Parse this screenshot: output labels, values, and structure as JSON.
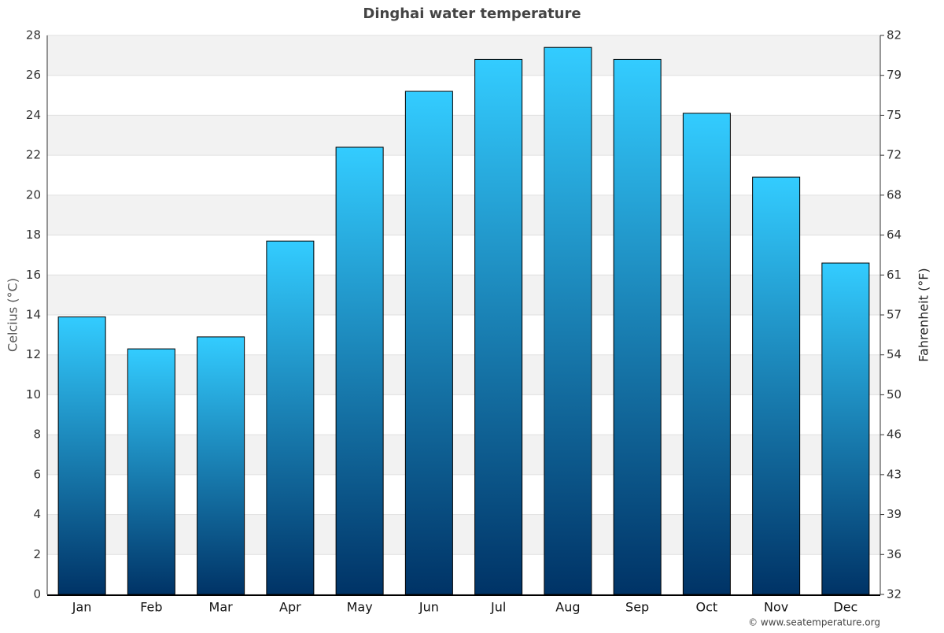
{
  "chart_data": {
    "type": "bar",
    "title": "Dinghai water temperature",
    "categories": [
      "Jan",
      "Feb",
      "Mar",
      "Apr",
      "May",
      "Jun",
      "Jul",
      "Aug",
      "Sep",
      "Oct",
      "Nov",
      "Dec"
    ],
    "values": [
      13.9,
      12.3,
      12.9,
      17.7,
      22.4,
      25.2,
      26.8,
      27.4,
      26.8,
      24.1,
      20.9,
      16.6
    ],
    "gradient": [
      "#33ccff",
      "#003366"
    ],
    "y_label": "Celcius (°C)",
    "y2_label": "Fahrenheit (°F)",
    "ylim": [
      0,
      28
    ],
    "yticks": [
      0,
      2,
      4,
      6,
      8,
      10,
      12,
      14,
      16,
      18,
      20,
      22,
      24,
      26,
      28
    ],
    "y2lim": [
      32,
      82.4
    ],
    "y2ticks": [
      32,
      {
        "value": 35.6,
        "label": "36"
      },
      {
        "value": 39.2,
        "label": "39"
      },
      {
        "value": 42.8,
        "label": "43"
      },
      {
        "value": 46.4,
        "label": "46"
      },
      50,
      {
        "value": 53.6,
        "label": "54"
      },
      {
        "value": 57.2,
        "label": "57"
      },
      {
        "value": 60.8,
        "label": "61"
      },
      {
        "value": 64.4,
        "label": "64"
      },
      68,
      {
        "value": 71.6,
        "label": "72"
      },
      {
        "value": 75.2,
        "label": "75"
      },
      {
        "value": 78.8,
        "label": "79"
      },
      {
        "value": 82.4,
        "label": "82"
      }
    ],
    "grid": true,
    "band_fill": "#f2f2f2",
    "credit": "© www.seatemperature.org"
  }
}
